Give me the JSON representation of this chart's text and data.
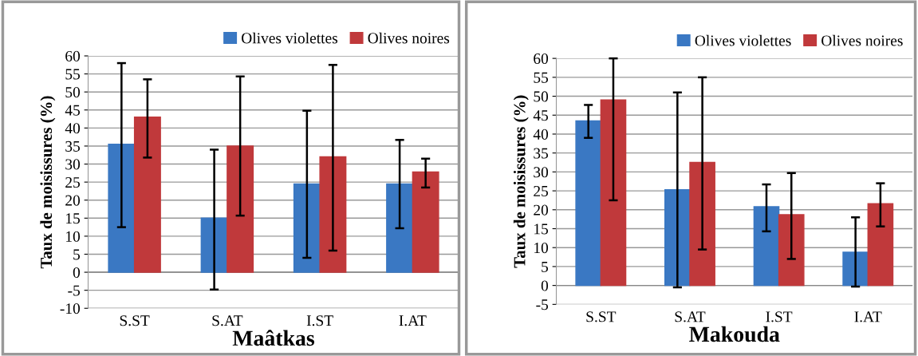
{
  "chart_data": [
    {
      "type": "bar",
      "xlabel": "Maâtkas",
      "ylabel": "Taux de moisissures (%)",
      "categories": [
        "S.ST",
        "S.AT",
        "I.ST",
        "I.AT"
      ],
      "ylim": [
        -10,
        60
      ],
      "yticks": [
        -10,
        -5,
        0,
        5,
        10,
        15,
        20,
        25,
        30,
        35,
        40,
        45,
        50,
        55,
        60
      ],
      "grid": "y",
      "legend": "top right",
      "series": [
        {
          "name": "Olives violettes",
          "color": "#3a78c3",
          "values": [
            35.5,
            15,
            24.5,
            24.5
          ],
          "errors": [
            [
              12.5,
              58
            ],
            [
              -4.8,
              34
            ],
            [
              4,
              44.8
            ],
            [
              12.2,
              36.7
            ]
          ]
        },
        {
          "name": "Olives noires",
          "color": "#c0393b",
          "values": [
            43,
            35,
            32,
            27.8
          ],
          "errors": [
            [
              31.8,
              53.5
            ],
            [
              15.7,
              54.3
            ],
            [
              6,
              57.5
            ],
            [
              23.5,
              31.5
            ]
          ]
        }
      ]
    },
    {
      "type": "bar",
      "xlabel": "Makouda",
      "ylabel": "Taux de moisissures (%)",
      "categories": [
        "S.ST",
        "S.AT",
        "I.ST",
        "I.AT"
      ],
      "ylim": [
        -5,
        60
      ],
      "yticks": [
        -5,
        0,
        5,
        10,
        15,
        20,
        25,
        30,
        35,
        40,
        45,
        50,
        55,
        60
      ],
      "grid": "y",
      "legend": "top right",
      "series": [
        {
          "name": "Olives violettes",
          "color": "#3a78c3",
          "values": [
            43.5,
            25.3,
            20.8,
            8.8
          ],
          "errors": [
            [
              39,
              47.7
            ],
            [
              -0.5,
              51
            ],
            [
              14.3,
              26.7
            ],
            [
              -0.3,
              18
            ]
          ]
        },
        {
          "name": "Olives noires",
          "color": "#c0393b",
          "values": [
            49,
            32.5,
            18.7,
            21.6
          ],
          "errors": [
            [
              22.5,
              60
            ],
            [
              9.5,
              55
            ],
            [
              7,
              29.7
            ],
            [
              15.6,
              27
            ]
          ]
        }
      ]
    }
  ]
}
